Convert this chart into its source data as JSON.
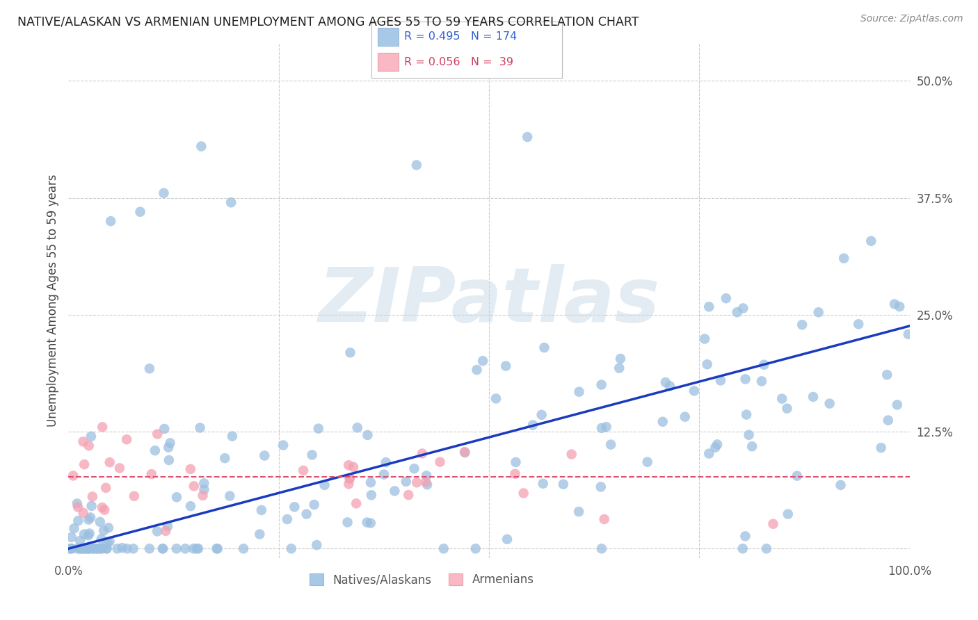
{
  "title": "NATIVE/ALASKAN VS ARMENIAN UNEMPLOYMENT AMONG AGES 55 TO 59 YEARS CORRELATION CHART",
  "source": "Source: ZipAtlas.com",
  "ylabel": "Unemployment Among Ages 55 to 59 years",
  "xlim": [
    0.0,
    1.0
  ],
  "ylim": [
    -0.01,
    0.54
  ],
  "yticks": [
    0.0,
    0.125,
    0.25,
    0.375,
    0.5
  ],
  "yticklabels": [
    "",
    "12.5%",
    "25.0%",
    "37.5%",
    "50.0%"
  ],
  "xticks": [
    0.0,
    1.0
  ],
  "xticklabels": [
    "0.0%",
    "100.0%"
  ],
  "background_color": "#ffffff",
  "grid_color": "#cccccc",
  "watermark": "ZIPatlas",
  "native_color": "#9bbfe0",
  "armenian_color": "#f4a0b0",
  "native_line_color": "#1a3bbf",
  "armenian_line_color": "#e05070",
  "R_native": 0.495,
  "N_native": 174,
  "R_armenian": 0.056,
  "N_armenian": 39,
  "legend_color_native": "#a8c8e8",
  "legend_color_armenian": "#f9b8c4",
  "legend_text_color_native": "#3060d0",
  "legend_text_color_armenian": "#d04060",
  "native_line_y0": 0.0,
  "native_line_y1": 0.238,
  "armenian_line_y0": 0.077,
  "armenian_line_y1": 0.077
}
